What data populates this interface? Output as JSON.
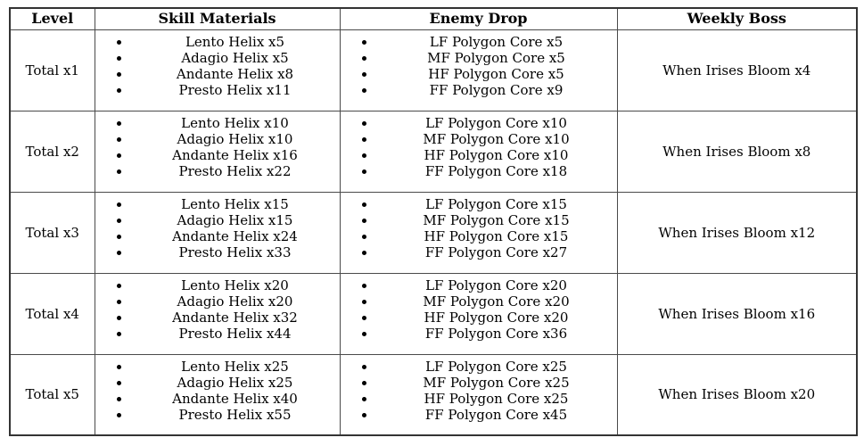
{
  "colors": {
    "background": "#ffffff",
    "text": "#000000",
    "border_outer": "#333333",
    "border_inner": "#4a4a4a"
  },
  "table": {
    "columns": [
      {
        "label": "Level"
      },
      {
        "label": "Skill Materials"
      },
      {
        "label": "Enemy Drop"
      },
      {
        "label": "Weekly Boss"
      }
    ],
    "rows": [
      {
        "level": "Total x1",
        "skill_materials": [
          "Lento Helix x5",
          "Adagio Helix x5",
          "Andante Helix x8",
          "Presto Helix x11"
        ],
        "enemy_drop": [
          "LF Polygon Core x5",
          "MF Polygon Core x5",
          "HF Polygon Core x5",
          "FF Polygon Core x9"
        ],
        "weekly_boss": "When Irises Bloom x4"
      },
      {
        "level": "Total x2",
        "skill_materials": [
          "Lento Helix x10",
          "Adagio Helix x10",
          "Andante Helix x16",
          "Presto Helix x22"
        ],
        "enemy_drop": [
          "LF Polygon Core x10",
          "MF Polygon Core x10",
          "HF Polygon Core x10",
          "FF Polygon Core x18"
        ],
        "weekly_boss": "When Irises Bloom x8"
      },
      {
        "level": "Total x3",
        "skill_materials": [
          "Lento Helix x15",
          "Adagio Helix x15",
          "Andante Helix x24",
          "Presto Helix x33"
        ],
        "enemy_drop": [
          "LF Polygon Core x15",
          "MF Polygon Core x15",
          "HF Polygon Core x15",
          "FF Polygon Core x27"
        ],
        "weekly_boss": "When Irises Bloom x12"
      },
      {
        "level": "Total x4",
        "skill_materials": [
          "Lento Helix x20",
          "Adagio Helix x20",
          "Andante Helix x32",
          "Presto Helix x44"
        ],
        "enemy_drop": [
          "LF Polygon Core x20",
          "MF Polygon Core x20",
          "HF Polygon Core x20",
          "FF Polygon Core x36"
        ],
        "weekly_boss": "When Irises Bloom x16"
      },
      {
        "level": "Total x5",
        "skill_materials": [
          "Lento Helix x25",
          "Adagio Helix x25",
          "Andante Helix x40",
          "Presto Helix x55"
        ],
        "enemy_drop": [
          "LF Polygon Core x25",
          "MF Polygon Core x25",
          "HF Polygon Core x25",
          "FF Polygon Core x45"
        ],
        "weekly_boss": "When Irises Bloom x20"
      }
    ]
  }
}
